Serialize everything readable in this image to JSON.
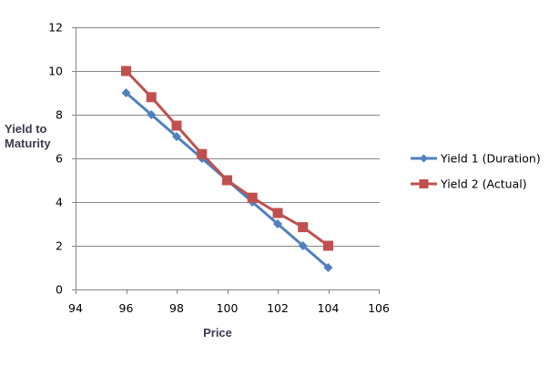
{
  "chart_data": {
    "type": "line",
    "title": "",
    "xlabel": "Price",
    "ylabel": "Yield to Maturity",
    "ylabel_lines": [
      "Yield to",
      "Maturity"
    ],
    "xlim": [
      94,
      106
    ],
    "ylim": [
      0,
      12
    ],
    "x_ticks": [
      94,
      96,
      98,
      100,
      102,
      104,
      106
    ],
    "y_ticks": [
      0,
      2,
      4,
      6,
      8,
      10,
      12
    ],
    "grid": {
      "horizontal": true,
      "vertical": false
    },
    "legend_position": "right",
    "x": [
      96,
      97,
      98,
      99,
      100,
      101,
      102,
      103,
      104
    ],
    "series": [
      {
        "name": "Yield 1 (Duration)",
        "color": "#4F81BD",
        "marker": "diamond",
        "values": [
          9,
          8,
          7,
          6,
          5,
          4,
          3,
          2,
          1
        ]
      },
      {
        "name": "Yield 2 (Actual)",
        "color": "#C0504D",
        "marker": "square",
        "values": [
          10,
          8.8,
          7.5,
          6.2,
          5,
          4.2,
          3.5,
          2.85,
          2
        ]
      }
    ]
  },
  "colors": {
    "gridline": "#868686",
    "axis": "#868686",
    "axis_title": "#3b3b4f"
  }
}
